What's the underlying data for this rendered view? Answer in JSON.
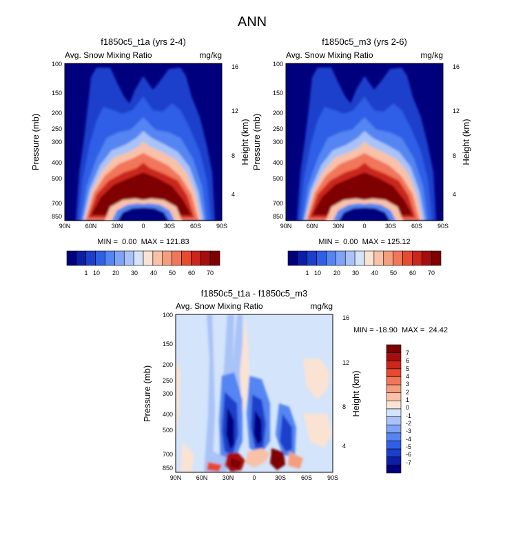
{
  "page_title": "ANN",
  "chart_data": [
    {
      "type": "heatmap",
      "title": "f1850c5_t1a (yrs 2-4)",
      "subtitle_left": "Avg. Snow Mixing Ratio",
      "subtitle_right": "mg/kg",
      "xlabel": "",
      "ylabel": "Pressure (mb)",
      "ylabel_right": "Height (km)",
      "x_ticks": [
        "90N",
        "60N",
        "30N",
        "0",
        "30S",
        "60S",
        "90S"
      ],
      "y_ticks": [
        "100",
        "150",
        "200",
        "250",
        "300",
        "400",
        "500",
        "700",
        "850"
      ],
      "y_ticks_right": [
        "16",
        "12",
        "8",
        "4"
      ],
      "stats": "MIN =  0.00  MAX = 121.83",
      "colorbar_ticks": [
        "1",
        "10",
        "20",
        "30",
        "40",
        "50",
        "60",
        "70"
      ]
    },
    {
      "type": "heatmap",
      "title": "f1850c5_m3 (yrs 2-6)",
      "subtitle_left": "Avg. Snow Mixing Ratio",
      "subtitle_right": "mg/kg",
      "xlabel": "",
      "ylabel": "Pressure (mb)",
      "ylabel_right": "Height (km)",
      "x_ticks": [
        "90N",
        "60N",
        "30N",
        "0",
        "30S",
        "60S",
        "90S"
      ],
      "y_ticks": [
        "100",
        "150",
        "200",
        "250",
        "300",
        "400",
        "500",
        "700",
        "850"
      ],
      "y_ticks_right": [
        "16",
        "12",
        "8",
        "4"
      ],
      "stats": "MIN =  0.00  MAX = 125.12",
      "colorbar_ticks": [
        "1",
        "10",
        "20",
        "30",
        "40",
        "50",
        "60",
        "70"
      ]
    },
    {
      "type": "heatmap",
      "title": "f1850c5_t1a - f1850c5_m3",
      "subtitle_left": "Avg. Snow Mixing Ratio",
      "subtitle_right": "mg/kg",
      "xlabel": "",
      "ylabel": "Pressure (mb)",
      "ylabel_right": "Height (km)",
      "x_ticks": [
        "90N",
        "60N",
        "30N",
        "0",
        "30S",
        "60S",
        "90S"
      ],
      "y_ticks": [
        "100",
        "150",
        "200",
        "250",
        "300",
        "400",
        "500",
        "700",
        "850"
      ],
      "y_ticks_right": [
        "16",
        "12",
        "8",
        "4"
      ],
      "stats": "MIN = -18.90  MAX =  24.42",
      "colorbar_ticks": [
        "7",
        "6",
        "5",
        "4",
        "3",
        "2",
        "1",
        "0",
        "-1",
        "-2",
        "-3",
        "-4",
        "-5",
        "-6",
        "-7"
      ]
    }
  ],
  "colors": {
    "abs_scale": [
      "#00007f",
      "#0d1ea6",
      "#1c3fcb",
      "#2f5fe6",
      "#5585f2",
      "#7fa3f5",
      "#a9c3f8",
      "#d3e4fb",
      "#fbe3d3",
      "#f8c1a8",
      "#f59e7d",
      "#f2765a",
      "#e64a2f",
      "#cb251c",
      "#a60d0d",
      "#7f0000"
    ],
    "diff_scale": [
      "#00007f",
      "#0d1ea6",
      "#1c3fcb",
      "#2f5fe6",
      "#5585f2",
      "#7fa3f5",
      "#a9c3f8",
      "#d3e4fb",
      "#fbe3d3",
      "#f8c1a8",
      "#f59e7d",
      "#f2765a",
      "#e64a2f",
      "#cb251c",
      "#a60d0d",
      "#7f0000"
    ]
  }
}
